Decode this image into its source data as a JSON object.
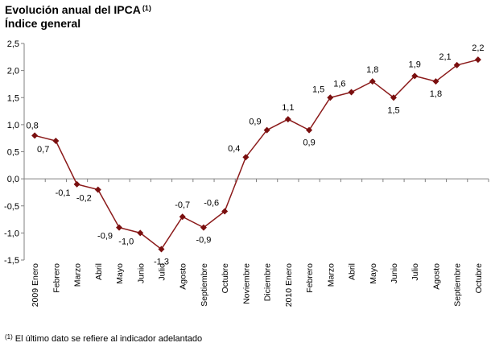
{
  "title": "Evolución anual del IPCA",
  "title_note": "(1)",
  "subtitle": "Índice general",
  "footnote_mark": "(1)",
  "footnote_text": "El último dato se refiere al indicador adelantado",
  "colors": {
    "line": "#8b1a1a",
    "marker": "#7a0f0f",
    "axis": "#808080"
  },
  "chart_data": {
    "type": "line",
    "categories": [
      "2009 Enero",
      "Febrero",
      "Marzo",
      "Abril",
      "Mayo",
      "Junio",
      "Julio",
      "Agosto",
      "Septiembre",
      "Octubre",
      "Noviembre",
      "Diciembre",
      "2010 Enero",
      "Febrero",
      "Marzo",
      "Abril",
      "Mayo",
      "Junio",
      "Julio",
      "Agosto",
      "Septiembre",
      "Octubre"
    ],
    "series": [
      {
        "values": [
          0.8,
          0.7,
          -0.1,
          -0.2,
          -0.9,
          -1.0,
          -1.3,
          -0.7,
          -0.9,
          -0.6,
          0.4,
          0.9,
          1.1,
          0.9,
          1.5,
          1.6,
          1.8,
          1.5,
          1.9,
          1.8,
          2.1,
          2.2
        ]
      }
    ],
    "data_labels": [
      "0,8",
      "0,7",
      "-0,1",
      "-0,2",
      "-0,9",
      "-1,0",
      "-1,3",
      "-0,7",
      "-0,9",
      "-0,6",
      "0,4",
      "0,9",
      "1,1",
      "0,9",
      "1,5",
      "1,6",
      "1,8",
      "1,5",
      "1,9",
      "1,8",
      "2,1",
      "2,2"
    ],
    "yticks": [
      "-1,5",
      "-1,0",
      "-0,5",
      "0,0",
      "0,5",
      "1,0",
      "1,5",
      "2,0",
      "2,5"
    ],
    "ylim": [
      -1.5,
      2.5
    ],
    "grid": false,
    "legend": "none"
  }
}
